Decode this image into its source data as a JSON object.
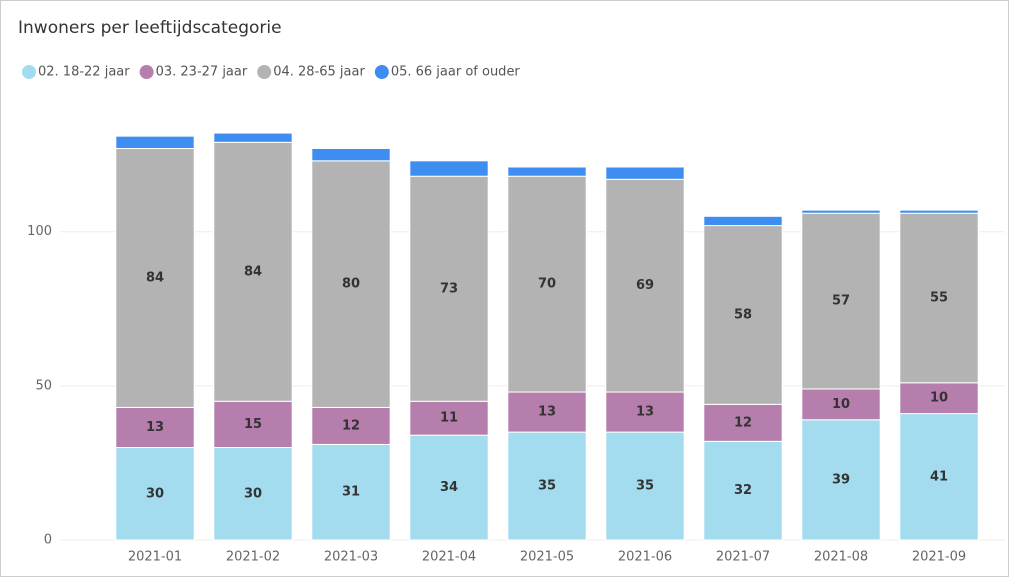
{
  "chart_data": {
    "type": "stacked_bar",
    "title": "Inwoners per leeftijdscategorie",
    "categories": [
      "2021-01",
      "2021-02",
      "2021-03",
      "2021-04",
      "2021-05",
      "2021-06",
      "2021-07",
      "2021-08",
      "2021-09"
    ],
    "series": [
      {
        "name": "02. 18-22 jaar",
        "color": "#a3dcef",
        "values": [
          30,
          30,
          31,
          34,
          35,
          35,
          32,
          39,
          41
        ],
        "labels": true
      },
      {
        "name": "03. 23-27 jaar",
        "color": "#b67ead",
        "values": [
          13,
          15,
          12,
          11,
          13,
          13,
          12,
          10,
          10
        ],
        "labels": true
      },
      {
        "name": "04. 28-65 jaar",
        "color": "#b3b3b3",
        "values": [
          84,
          84,
          80,
          73,
          70,
          69,
          58,
          57,
          55
        ],
        "labels": true
      },
      {
        "name": "05. 66 jaar of ouder",
        "color": "#3d8ef0",
        "values": [
          4,
          3,
          4,
          5,
          3,
          4,
          3,
          1,
          1
        ],
        "labels": false
      }
    ],
    "ylim": [
      0,
      145
    ],
    "yticks": [
      0,
      50,
      100
    ],
    "grid": true
  }
}
